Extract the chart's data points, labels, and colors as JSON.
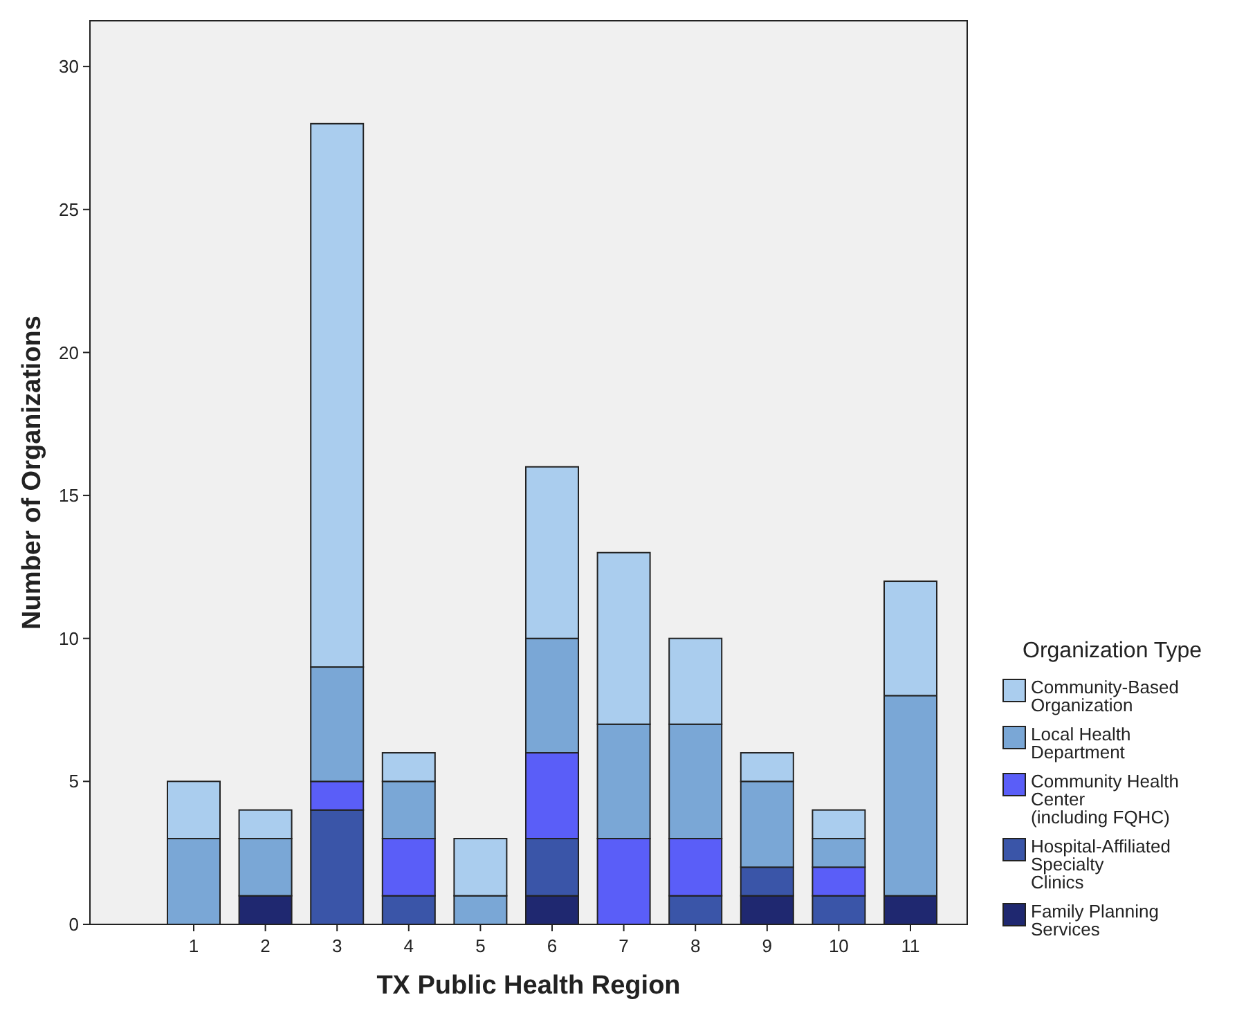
{
  "chart_data": {
    "type": "bar",
    "xlabel": "TX Public Health Region",
    "ylabel": "Number of Organizations",
    "legend_title": "Organization Type",
    "categories": [
      "1",
      "2",
      "3",
      "4",
      "5",
      "6",
      "7",
      "8",
      "9",
      "10",
      "11"
    ],
    "stacked": true,
    "ylim": [
      0,
      31.6
    ],
    "yticks": [
      0,
      5,
      10,
      15,
      20,
      25,
      30
    ],
    "grid": false,
    "legend": "right",
    "series": [
      {
        "name": "Family Planning Services",
        "color": "#1f2870",
        "values": [
          0,
          1,
          0,
          0,
          0,
          1,
          0,
          0,
          1,
          0,
          1
        ]
      },
      {
        "name": "Hospital-Affiliated Specialty Clinics",
        "color": "#3a55a8",
        "values": [
          0,
          0,
          4,
          1,
          0,
          2,
          0,
          1,
          1,
          1,
          0
        ]
      },
      {
        "name": "Community Health Center (including FQHC)",
        "color": "#5a5ef8",
        "values": [
          0,
          0,
          1,
          2,
          0,
          3,
          3,
          2,
          0,
          1,
          0
        ]
      },
      {
        "name": "Local Health Department",
        "color": "#7aa7d6",
        "values": [
          3,
          2,
          4,
          2,
          1,
          4,
          4,
          4,
          3,
          1,
          7
        ]
      },
      {
        "name": "Community-Based Organization",
        "color": "#aacdee",
        "values": [
          2,
          1,
          19,
          1,
          2,
          6,
          6,
          3,
          1,
          1,
          4
        ]
      }
    ]
  }
}
